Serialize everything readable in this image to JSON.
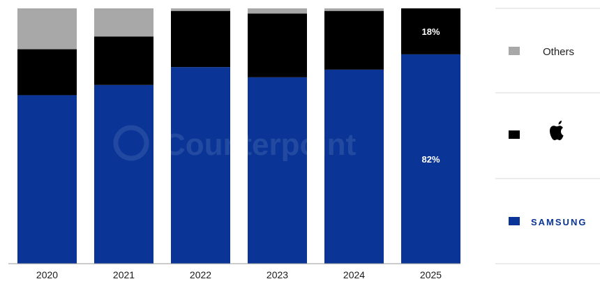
{
  "chart_data": {
    "type": "bar",
    "stacked": true,
    "normalized": true,
    "categories": [
      "2020",
      "2021",
      "2022",
      "2023",
      "2024",
      "2025"
    ],
    "series": [
      {
        "key": "samsung",
        "values": [
          66,
          70,
          77,
          73,
          76,
          82
        ],
        "color": "#0a3597"
      },
      {
        "key": "apple",
        "values": [
          18,
          19,
          22,
          25,
          23,
          18
        ],
        "color": "#000000"
      },
      {
        "key": "others",
        "values": [
          16,
          11,
          1,
          2,
          1,
          0
        ],
        "color": "#a8a8a8"
      }
    ],
    "ylim": [
      0,
      100
    ],
    "data_labels": [
      {
        "category": "2025",
        "series": "apple",
        "text": "18%"
      },
      {
        "category": "2025",
        "series": "samsung",
        "text": "82%"
      }
    ],
    "legend": {
      "placement": "right",
      "items": [
        {
          "key": "others",
          "label": "Others",
          "color": "#a8a8a8",
          "icon": "text"
        },
        {
          "key": "apple",
          "label": "",
          "color": "#000000",
          "icon": "apple-logo-icon"
        },
        {
          "key": "samsung",
          "label": "SAMSUNG",
          "color": "#0a3597",
          "icon": "samsung-wordmark"
        }
      ]
    },
    "watermark": "Counterpoint",
    "grid": false
  }
}
